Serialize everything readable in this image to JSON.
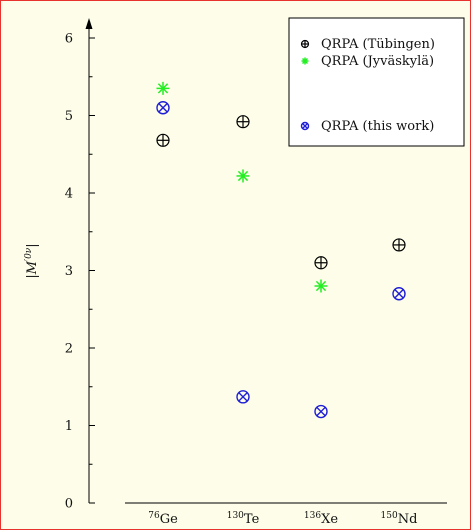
{
  "chart_data": {
    "type": "scatter",
    "categories": [
      "76Ge",
      "130Te",
      "136Xe",
      "150Nd"
    ],
    "category_labels": [
      {
        "sup": "76",
        "base": "Ge"
      },
      {
        "sup": "130",
        "base": "Te"
      },
      {
        "sup": "136",
        "base": "Xe"
      },
      {
        "sup": "150",
        "base": "Nd"
      }
    ],
    "ylabel": "|M'0ν|",
    "ylabel_parts": {
      "left": "|",
      "base": "M",
      "sup": "′0ν",
      "right": "|"
    },
    "ylim": [
      0,
      6
    ],
    "yticks": [
      0,
      1,
      2,
      3,
      4,
      5,
      6
    ],
    "legend_position": "top-right",
    "series": [
      {
        "name": "QRPA (Tübingen)",
        "marker": "circle-plus",
        "color": "#000000",
        "values": [
          4.68,
          4.92,
          3.1,
          3.33
        ]
      },
      {
        "name": "QRPA (Jyväskylä)",
        "marker": "asterisk",
        "color": "#22ee22",
        "values": [
          5.35,
          4.22,
          2.8,
          null
        ]
      },
      {
        "name": "QRPA (this work)",
        "marker": "circle-x",
        "color": "#1f1fd6",
        "values": [
          5.1,
          1.37,
          1.18,
          2.7
        ]
      }
    ]
  }
}
